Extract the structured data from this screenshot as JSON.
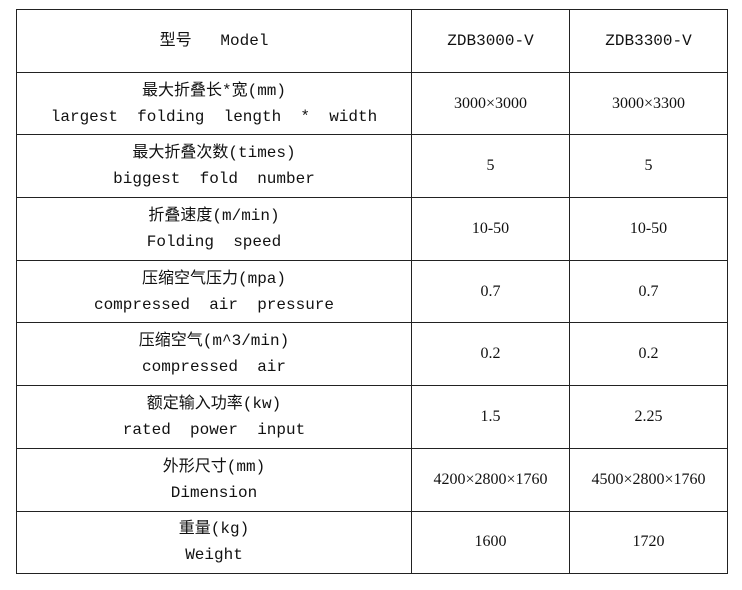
{
  "header": {
    "label_zh": "型号",
    "label_en": "Model",
    "models": [
      "ZDB3000-V",
      "ZDB3300-V"
    ]
  },
  "rows": [
    {
      "zh": "最大折叠长*宽(mm)",
      "en": "largest  folding  length  *  width",
      "values": [
        "3000×3000",
        "3000×3300"
      ]
    },
    {
      "zh": "最大折叠次数(times)",
      "en": "biggest  fold  number",
      "values": [
        "5",
        "5"
      ]
    },
    {
      "zh": "折叠速度(m/min)",
      "en": "Folding  speed",
      "values": [
        "10-50",
        "10-50"
      ]
    },
    {
      "zh": "压缩空气压力(mpa)",
      "en": "compressed  air  pressure",
      "values": [
        "0.7",
        "0.7"
      ]
    },
    {
      "zh": "压缩空气(m^3/min)",
      "en": "compressed  air",
      "values": [
        "0.2",
        "0.2"
      ]
    },
    {
      "zh": "额定输入功率(kw)",
      "en": "rated  power  input",
      "values": [
        "1.5",
        "2.25"
      ]
    },
    {
      "zh": "外形尺寸(mm)",
      "en": "Dimension",
      "values": [
        "4200×2800×1760",
        "4500×2800×1760"
      ]
    },
    {
      "zh": "重量(kg)",
      "en": "Weight",
      "values": [
        "1600",
        "1720"
      ]
    }
  ]
}
